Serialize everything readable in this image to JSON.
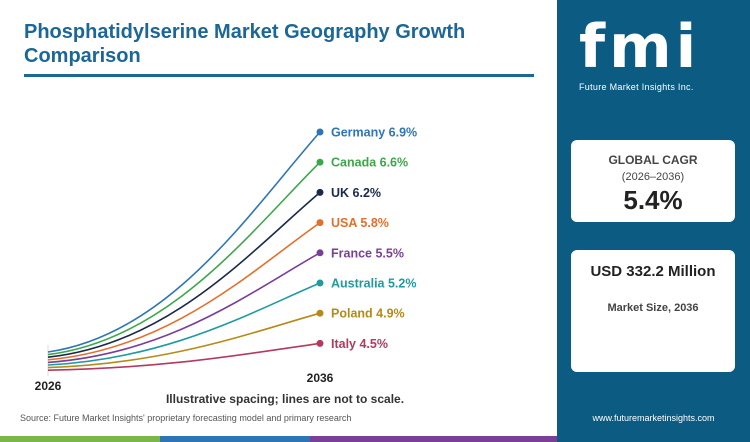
{
  "header": {
    "title": "Phosphatidylserine Market Geography Growth Comparison"
  },
  "chart_data": {
    "type": "line",
    "x_start_label": "2026",
    "x_end_label": "2036",
    "series": [
      {
        "name": "Germany",
        "cagr": 6.9,
        "label": "Germany 6.9%",
        "color": "#2e75b6"
      },
      {
        "name": "Canada",
        "cagr": 6.6,
        "label": "Canada 6.6%",
        "color": "#3aa84a"
      },
      {
        "name": "UK",
        "cagr": 6.2,
        "label": "UK 6.2%",
        "color": "#1b2a4a"
      },
      {
        "name": "USA",
        "cagr": 5.8,
        "label": "USA 5.8%",
        "color": "#e46f2a"
      },
      {
        "name": "France",
        "cagr": 5.5,
        "label": "France 5.5%",
        "color": "#7b3f98"
      },
      {
        "name": "Australia",
        "cagr": 5.2,
        "label": "Australia 5.2%",
        "color": "#1f9aa0"
      },
      {
        "name": "Poland",
        "cagr": 4.9,
        "label": "Poland 4.9%",
        "color": "#b58a17"
      },
      {
        "name": "Italy",
        "cagr": 4.5,
        "label": "Italy 4.5%",
        "color": "#b23a5e"
      }
    ],
    "note": "Illustrative spacing; lines are not to scale."
  },
  "source": "Source: Future Market Insights' proprietary forecasting model and primary research",
  "sidebar": {
    "logo_text": "fmi",
    "logo_subtitle": "Future Market Insights Inc.",
    "cagr_label": "GLOBAL CAGR",
    "cagr_range": "(2026–2036)",
    "cagr_value": "5.4%",
    "market_size_value": "USD 332.2 Million",
    "market_size_label": "Market Size, 2036",
    "website": "www.futuremarketinsights.com"
  },
  "colors": {
    "accent": "#1b6797",
    "sidebar": "#0b5b82",
    "band_green": "#7ab648",
    "band_blue": "#2e75b6",
    "band_purple": "#7b3f98"
  }
}
